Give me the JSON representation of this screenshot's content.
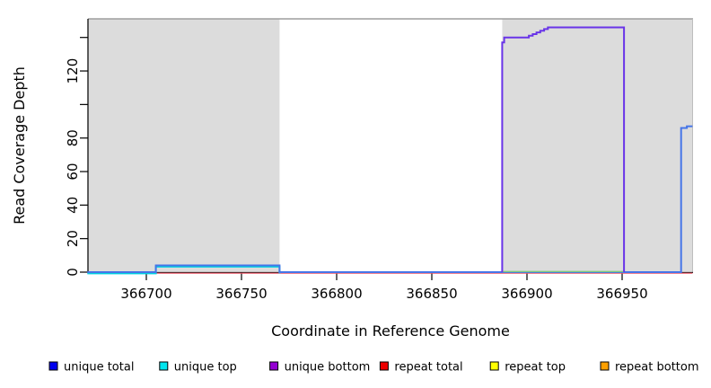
{
  "figure": {
    "background": "#ffffff",
    "panel_border_color": "#9e9e9e",
    "axis_color": "#000000",
    "legend": {
      "items": [
        {
          "label": "unique total",
          "color": "#0000ee"
        },
        {
          "label": "unique top",
          "color": "#00e5ee"
        },
        {
          "label": "unique bottom",
          "color": "#9400d3"
        },
        {
          "label": "repeat total",
          "color": "#ee0000"
        },
        {
          "label": "repeat top",
          "color": "#ffff00"
        },
        {
          "label": "repeat bottom",
          "color": "#ffa000"
        }
      ]
    }
  },
  "chart_data": {
    "type": "line",
    "title": "",
    "xlabel": "Coordinate in Reference Genome",
    "ylabel": "Read Coverage Depth",
    "xlim": [
      366669,
      366987
    ],
    "ylim": [
      0,
      151
    ],
    "x_ticks": [
      366700,
      366750,
      366800,
      366850,
      366900,
      366950
    ],
    "y_ticks": [
      0,
      20,
      40,
      60,
      80,
      100,
      120,
      140
    ],
    "y_tick_labels_shown": [
      "0",
      "20",
      "40",
      "60",
      "80",
      "120"
    ],
    "grid": false,
    "legend_position": "bottom",
    "shade_color": "#dcdcdc",
    "shaded_regions": [
      {
        "x1": 366669,
        "x2": 366770
      },
      {
        "x1": 366887,
        "x2": 366987
      }
    ],
    "series": [
      {
        "name": "repeat total baseline",
        "color": "#ee5566",
        "width": 1.2,
        "offset": 1.2,
        "points": [
          [
            366669,
            0
          ],
          [
            366987,
            0
          ]
        ]
      },
      {
        "name": "unique top",
        "color": "#00d0e0",
        "width": 2,
        "offset": 1.4,
        "points": [
          [
            366669,
            0
          ],
          [
            366705,
            0
          ],
          [
            366705,
            4
          ],
          [
            366770,
            4
          ],
          [
            366770,
            0
          ]
        ]
      },
      {
        "name": "unique total",
        "color": "#4575e8",
        "width": 2,
        "offset": 0,
        "points": [
          [
            366669,
            0
          ],
          [
            366705,
            0
          ],
          [
            366705,
            4
          ],
          [
            366770,
            4
          ],
          [
            366770,
            0
          ],
          [
            366981,
            0
          ],
          [
            366981,
            86
          ],
          [
            366984,
            86
          ],
          [
            366984,
            87
          ],
          [
            366987,
            87
          ]
        ]
      },
      {
        "name": "green baseline",
        "color": "#7ec87e",
        "width": 1.5,
        "offset": -0.6,
        "points": [
          [
            366887,
            0
          ],
          [
            366951,
            0
          ]
        ]
      },
      {
        "name": "unique bottom",
        "color": "#6934e8",
        "width": 2,
        "offset": 0,
        "points": [
          [
            366887,
            0
          ],
          [
            366887,
            137
          ],
          [
            366888,
            137
          ],
          [
            366888,
            140
          ],
          [
            366900,
            140
          ],
          [
            366901,
            140
          ],
          [
            366901,
            141
          ],
          [
            366903,
            141
          ],
          [
            366903,
            142
          ],
          [
            366905,
            142
          ],
          [
            366905,
            143
          ],
          [
            366907,
            143
          ],
          [
            366907,
            144
          ],
          [
            366909,
            144
          ],
          [
            366909,
            145
          ],
          [
            366911,
            145
          ],
          [
            366911,
            146
          ],
          [
            366951,
            146
          ],
          [
            366951,
            0
          ]
        ]
      }
    ]
  }
}
